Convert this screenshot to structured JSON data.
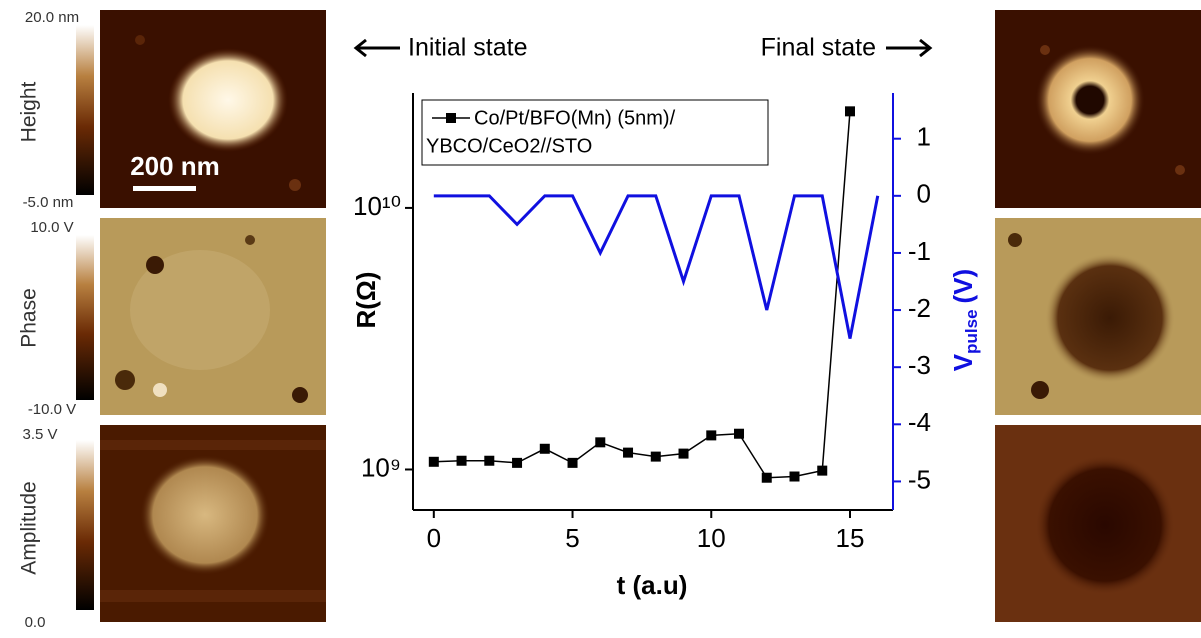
{
  "panels": {
    "colorbars": [
      {
        "top": "20.0 nm",
        "bottom": "-5.0 nm",
        "label": "Height"
      },
      {
        "top": "10.0 V",
        "bottom": "-10.0 V",
        "label": "Phase"
      },
      {
        "top": "3.5 V",
        "bottom": "0.0",
        "label": "Amplitude"
      }
    ],
    "scale_bar": "200 nm"
  },
  "chart_data": {
    "type": "line",
    "annotations": [
      "Initial state",
      "Final state"
    ],
    "xlabel": "t (a.u)",
    "ylabel": "R(Ω)",
    "y2label": [
      "V",
      "pulse",
      "(V)"
    ],
    "xlim": [
      -0.75,
      16.55
    ],
    "xticks": [
      0,
      5,
      10,
      15
    ],
    "ylim": [
      700000000,
      27500000000
    ],
    "log_y": true,
    "yticks": [
      {
        "value": 1000000000,
        "label": "10⁹"
      },
      {
        "value": 10000000000,
        "label": "10¹⁰"
      }
    ],
    "y2lim": [
      -5.5,
      1.8
    ],
    "y2ticks": [
      1,
      0,
      -1,
      -2,
      -3,
      -4,
      -5
    ],
    "y2color": "#1010e0",
    "series": [
      {
        "name": [
          "Co/Pt/BFO(Mn) (5nm)/",
          "YBCO/CeO2//STO"
        ],
        "color": "#000000",
        "marker": "square",
        "x": [
          0,
          1,
          2,
          3,
          4,
          5,
          6,
          7,
          8,
          9,
          10,
          11,
          12,
          13,
          14,
          15
        ],
        "values": [
          1070000000,
          1080000000,
          1080000000,
          1060000000,
          1200000000,
          1060000000,
          1270000000,
          1160000000,
          1120000000,
          1150000000,
          1350000000,
          1370000000,
          930000000,
          940000000,
          990000000,
          23400000000
        ]
      },
      {
        "color": "#1010e0",
        "axis": "y2",
        "x": [
          0,
          1,
          2,
          3,
          4,
          5,
          6,
          7,
          8,
          9,
          10,
          11,
          12,
          13,
          14,
          15,
          16
        ],
        "values": [
          0,
          0,
          0,
          -0.5,
          0,
          0,
          -1,
          0,
          0,
          -1.5,
          0,
          0,
          -2,
          0,
          0,
          -2.5,
          0
        ]
      }
    ]
  }
}
